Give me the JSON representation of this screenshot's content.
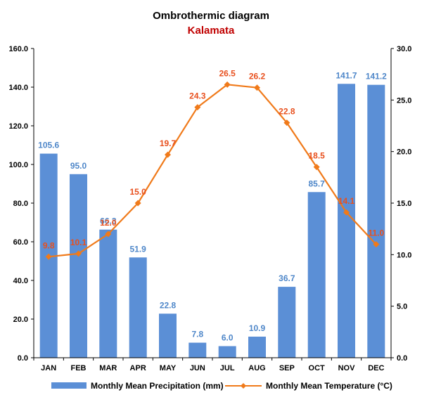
{
  "chart_data": {
    "type": "bar",
    "title": "Ombrothermic diagram",
    "subtitle": "Kalamata",
    "categories": [
      "JAN",
      "FEB",
      "MAR",
      "APR",
      "MAY",
      "JUN",
      "JUL",
      "AUG",
      "SEP",
      "OCT",
      "NOV",
      "DEC"
    ],
    "series": [
      {
        "name": "Monthly Mean Precipitation (mm)",
        "type": "bar",
        "axis": "left",
        "color": "#5B8FD6",
        "label_color": "#4F87C9",
        "values": [
          105.6,
          95.0,
          66.3,
          51.9,
          22.8,
          7.8,
          6.0,
          10.9,
          36.7,
          85.7,
          141.7,
          141.2
        ],
        "labels": [
          "105.6",
          "95.0",
          "66.3",
          "51.9",
          "22.8",
          "7.8",
          "6.0",
          "10.9",
          "36.7",
          "85.7",
          "141.7",
          "141.2"
        ]
      },
      {
        "name": "Monthly Mean Temperature (°C)",
        "type": "line",
        "axis": "right",
        "color": "#F07A1A",
        "label_color": "#E8501E",
        "values": [
          9.8,
          10.1,
          12.0,
          15.0,
          19.7,
          24.3,
          26.5,
          26.2,
          22.8,
          18.5,
          14.1,
          11.0
        ],
        "labels": [
          "9.8",
          "10.1",
          "12.0",
          "15.0",
          "19.7",
          "24.3",
          "26.5",
          "26.2",
          "22.8",
          "18.5",
          "14.1",
          "11.0"
        ]
      }
    ],
    "y_left": {
      "ylim": [
        0,
        160
      ],
      "ticks": [
        0,
        20,
        40,
        60,
        80,
        100,
        120,
        140,
        160
      ],
      "tick_labels": [
        "0.0",
        "20.0",
        "40.0",
        "60.0",
        "80.0",
        "100.0",
        "120.0",
        "140.0",
        "160.0"
      ]
    },
    "y_right": {
      "ylim": [
        0,
        30
      ],
      "ticks": [
        0,
        5,
        10,
        15,
        20,
        25,
        30
      ],
      "tick_labels": [
        "0.0",
        "5.0",
        "10.0",
        "15.0",
        "20.0",
        "25.0",
        "30.0"
      ]
    },
    "grid": false,
    "legend": "bottom",
    "colors": {
      "axis": "#000000",
      "subtitle": "#C00000"
    }
  }
}
